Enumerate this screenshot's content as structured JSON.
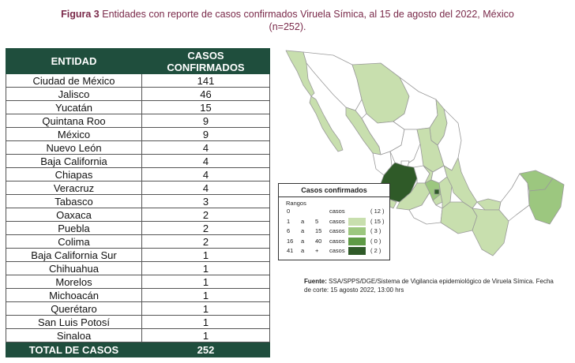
{
  "figure": {
    "label": "Figura 3",
    "title": "Entidades con reporte de casos confirmados Viruela Símica, al 15 de agosto del 2022, México",
    "n": "(n=252)."
  },
  "table": {
    "headers": [
      "ENTIDAD",
      "CASOS CONFIRMADOS"
    ],
    "rows": [
      {
        "entidad": "Ciudad de México",
        "casos": "141"
      },
      {
        "entidad": "Jalisco",
        "casos": "46"
      },
      {
        "entidad": "Yucatán",
        "casos": "15"
      },
      {
        "entidad": "Quintana Roo",
        "casos": "9"
      },
      {
        "entidad": "México",
        "casos": "9"
      },
      {
        "entidad": "Nuevo León",
        "casos": "4"
      },
      {
        "entidad": "Baja California",
        "casos": "4"
      },
      {
        "entidad": "Chiapas",
        "casos": "4"
      },
      {
        "entidad": "Veracruz",
        "casos": "4"
      },
      {
        "entidad": "Tabasco",
        "casos": "3"
      },
      {
        "entidad": "Oaxaca",
        "casos": "2"
      },
      {
        "entidad": "Puebla",
        "casos": "2"
      },
      {
        "entidad": "Colima",
        "casos": "2"
      },
      {
        "entidad": "Baja California Sur",
        "casos": "1"
      },
      {
        "entidad": "Chihuahua",
        "casos": "1"
      },
      {
        "entidad": "Morelos",
        "casos": "1"
      },
      {
        "entidad": "Michoacán",
        "casos": "1"
      },
      {
        "entidad": "Querétaro",
        "casos": "1"
      },
      {
        "entidad": "San Luis Potosí",
        "casos": "1"
      },
      {
        "entidad": "Sinaloa",
        "casos": "1"
      }
    ],
    "total_label": "TOTAL DE CASOS",
    "total_value": "252"
  },
  "legend": {
    "title": "Casos confirmados",
    "subtitle": "Rangos",
    "rows": [
      {
        "from": "0",
        "sep": "",
        "to": "",
        "unit": "casos",
        "count": "( 12 )",
        "color": "#ffffff"
      },
      {
        "from": "1",
        "sep": "a",
        "to": "5",
        "unit": "casos",
        "count": "( 15 )",
        "color": "#c8dfae"
      },
      {
        "from": "6",
        "sep": "a",
        "to": "15",
        "unit": "casos",
        "count": "( 3 )",
        "color": "#9cc77f"
      },
      {
        "from": "16",
        "sep": "a",
        "to": "40",
        "unit": "casos",
        "count": "( 0 )",
        "color": "#5e9a45"
      },
      {
        "from": "41",
        "sep": "a",
        "to": "+",
        "unit": "casos",
        "count": "( 2 )",
        "color": "#2f5a28"
      }
    ]
  },
  "source": {
    "label": "Fuente:",
    "text": "SSA/SPPS/DGE/Sistema de Vigilancia epidemiológico de Viruela Símica. Fecha de corte: 15 agosto 2022, 13:00 hrs"
  },
  "colors": {
    "header_bg": "#1f4e3d",
    "title_color": "#7a2a4a",
    "map_border": "#9a9a9a"
  }
}
